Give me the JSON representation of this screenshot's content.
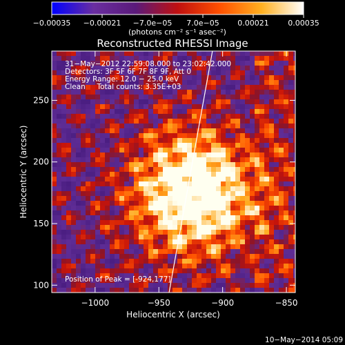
{
  "chart_data": {
    "type": "heatmap",
    "title": "Reconstructed RHESSI Image",
    "xlabel": "Heliocentric X (arcsec)",
    "ylabel": "Heliocentric Y (arcsec)",
    "xlim": [
      -1034,
      -843
    ],
    "ylim": [
      94,
      290
    ],
    "x_ticks": [
      -1000,
      -950,
      -900,
      -850
    ],
    "x_tick_labels": [
      "−1000",
      "−950",
      "−900",
      "−850"
    ],
    "y_ticks": [
      100,
      150,
      200,
      250
    ],
    "y_tick_labels": [
      "100",
      "150",
      "200",
      "250"
    ],
    "colorbar": {
      "range": [
        -0.00035,
        0.00035
      ],
      "ticks": [
        -0.00035,
        -0.00021,
        -7e-05,
        7e-05,
        0.00021,
        0.00035
      ],
      "tick_labels": [
        "−0.00035",
        "−0.00021",
        "−7.0e−05",
        "7.0e−05",
        "0.00021",
        "0.00035"
      ],
      "units_label": "(photons cm⁻² s⁻¹ asec⁻²)",
      "colors": [
        "#0000ff",
        "#6a2ea0",
        "#5a1a7a",
        "#c01010",
        "#ff5000",
        "#ffb020",
        "#ffffff"
      ]
    },
    "annotations": [
      "31−May−2012 22:59:08.000 to 23:02:42.000",
      "Detectors: 3F 5F 6F 7F 8F 9F, Att 0",
      "Energy Range: 12.0 − 25.0 keV",
      "Clean     Total counts: 3.35E+03"
    ],
    "peak_text": "Position of Peak = [-924,177]",
    "peak": [
      -924,
      177
    ],
    "limb_line": [
      [
        -942,
        94
      ],
      [
        -908,
        290
      ]
    ],
    "footer": "10−May−2014 05:09"
  }
}
